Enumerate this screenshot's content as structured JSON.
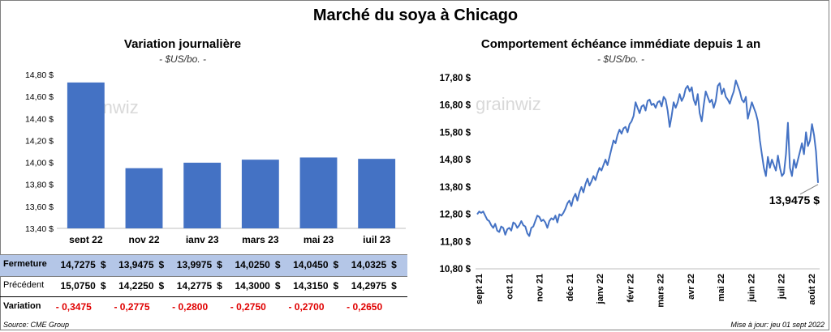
{
  "title": "Marché du soya à Chicago",
  "left_chart": {
    "title": "Variation  journalière",
    "unit": "- $US/bo. -",
    "watermark": "grainwiz"
  },
  "right_chart": {
    "title": "Comportement  échéance immédiate depuis 1 an",
    "unit": "- $US/bo. -",
    "watermark": "grainwiz",
    "last_label": "13,9475 $"
  },
  "table": {
    "currency": "$",
    "rows": [
      {
        "label": "Fermeture",
        "values": [
          "14,7275",
          "13,9475",
          "13,9975",
          "14,0250",
          "14,0450",
          "14,0325"
        ]
      },
      {
        "label": "Précédent",
        "values": [
          "15,0750",
          "14,2250",
          "14,2775",
          "14,3000",
          "14,3150",
          "14,2975"
        ]
      },
      {
        "label": "Variation",
        "values": [
          "- 0,3475",
          "- 0,2775",
          "- 0,2800",
          "- 0,2750",
          "- 0,2700",
          "- 0,2650"
        ]
      }
    ]
  },
  "footer": {
    "source": "Source: CME Group",
    "updated": "Mise à jour: jeu 01 sept 2022"
  },
  "colors": {
    "bar": "#4472c4",
    "line": "#4472c4",
    "highlight_row": "#b4c6e7",
    "negative": "#e00000"
  },
  "chart_data": [
    {
      "type": "bar",
      "categories": [
        "sept 22",
        "nov 22",
        "janv 23",
        "mars 23",
        "mai 23",
        "juil 23"
      ],
      "values": [
        14.7275,
        13.9475,
        13.9975,
        14.025,
        14.045,
        14.0325
      ],
      "ylim": [
        13.4,
        14.8
      ],
      "yticks": [
        "13,40 $",
        "13,60 $",
        "13,80 $",
        "14,00 $",
        "14,20 $",
        "14,40 $",
        "14,60 $",
        "14,80 $"
      ],
      "grid": false
    },
    {
      "type": "line",
      "x_ticks": [
        "sept 21",
        "oct 21",
        "nov 21",
        "déc 21",
        "janv 22",
        "févr 22",
        "mars 22",
        "avr 22",
        "mai 22",
        "juin 22",
        "juil 22",
        "août 22"
      ],
      "ylim": [
        10.8,
        17.8
      ],
      "yticks": [
        "10,80 $",
        "11,80 $",
        "12,80 $",
        "13,80 $",
        "14,80 $",
        "15,80 $",
        "16,80 $",
        "17,80 $"
      ],
      "values": [
        12.8,
        12.9,
        12.85,
        12.9,
        12.75,
        12.6,
        12.55,
        12.4,
        12.3,
        12.45,
        12.2,
        12.15,
        12.35,
        12.3,
        12.05,
        12.25,
        12.3,
        12.2,
        12.5,
        12.45,
        12.3,
        12.4,
        12.55,
        12.4,
        12.35,
        12.1,
        12.0,
        12.3,
        12.35,
        12.55,
        12.75,
        12.7,
        12.55,
        12.6,
        12.5,
        12.3,
        12.55,
        12.65,
        12.6,
        12.75,
        12.5,
        12.8,
        12.75,
        12.85,
        13.0,
        13.2,
        13.3,
        13.1,
        13.4,
        13.55,
        13.3,
        13.6,
        13.8,
        13.6,
        13.9,
        14.1,
        13.85,
        14.0,
        14.2,
        14.05,
        14.3,
        14.5,
        14.4,
        14.6,
        14.8,
        14.6,
        14.9,
        15.2,
        15.5,
        15.4,
        15.7,
        15.9,
        15.75,
        15.95,
        16.0,
        15.8,
        16.1,
        16.2,
        16.4,
        16.9,
        16.7,
        16.5,
        16.75,
        16.8,
        16.6,
        16.95,
        17.0,
        16.8,
        16.85,
        16.7,
        16.9,
        16.95,
        16.75,
        17.1,
        17.0,
        16.6,
        16.0,
        16.4,
        16.9,
        16.7,
        16.9,
        17.2,
        16.95,
        17.1,
        17.4,
        17.5,
        17.3,
        17.45,
        17.0,
        16.8,
        17.2,
        16.5,
        16.2,
        16.8,
        17.3,
        17.1,
        16.9,
        17.0,
        16.7,
        16.95,
        17.5,
        17.6,
        17.2,
        17.4,
        17.1,
        17.0,
        16.85,
        17.1,
        17.3,
        17.7,
        17.5,
        17.3,
        17.0,
        16.9,
        17.1,
        16.3,
        16.6,
        16.9,
        16.7,
        16.5,
        16.2,
        15.5,
        15.0,
        14.5,
        14.2,
        14.9,
        14.5,
        14.8,
        14.6,
        14.4,
        14.95,
        14.5,
        14.2,
        14.3,
        15.0,
        16.15,
        14.5,
        14.2,
        14.8,
        14.5,
        14.8,
        15.1,
        15.4,
        15.0,
        15.8,
        15.3,
        15.5,
        16.1,
        15.7,
        15.1,
        13.95
      ]
    }
  ]
}
